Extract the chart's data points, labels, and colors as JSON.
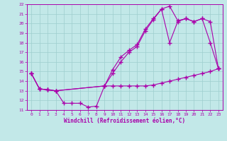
{
  "xlabel": "Windchill (Refroidissement éolien,°C)",
  "xlim": [
    -0.5,
    23.5
  ],
  "ylim": [
    11,
    22
  ],
  "xticks": [
    0,
    1,
    2,
    3,
    4,
    5,
    6,
    7,
    8,
    9,
    10,
    11,
    12,
    13,
    14,
    15,
    16,
    17,
    18,
    19,
    20,
    21,
    22,
    23
  ],
  "yticks": [
    11,
    12,
    13,
    14,
    15,
    16,
    17,
    18,
    19,
    20,
    21,
    22
  ],
  "bg_color": "#c2e8e8",
  "grid_color": "#9ecece",
  "line_color": "#aa00aa",
  "line1_x": [
    0,
    1,
    2,
    3,
    9,
    10,
    11,
    12,
    13,
    14,
    15,
    16,
    17,
    18,
    19,
    20,
    21,
    22,
    23
  ],
  "line1_y": [
    14.8,
    13.2,
    13.1,
    13.0,
    13.5,
    13.5,
    13.5,
    13.5,
    13.5,
    13.5,
    13.6,
    13.8,
    14.0,
    14.2,
    14.4,
    14.6,
    14.8,
    15.0,
    15.3
  ],
  "line2_x": [
    0,
    1,
    2,
    3,
    4,
    5,
    6,
    7,
    8,
    9,
    10,
    11,
    12,
    13,
    14,
    15,
    16,
    17,
    18,
    19,
    20,
    21,
    22,
    23
  ],
  "line2_y": [
    14.8,
    13.2,
    13.1,
    13.0,
    11.7,
    11.7,
    11.7,
    11.3,
    11.4,
    13.5,
    15.2,
    16.5,
    17.2,
    17.8,
    19.4,
    20.5,
    21.5,
    21.8,
    20.3,
    20.5,
    20.2,
    20.5,
    20.2,
    15.3
  ],
  "line3_x": [
    0,
    1,
    2,
    3,
    9,
    10,
    11,
    12,
    13,
    14,
    15,
    16,
    17,
    18,
    19,
    20,
    21,
    22,
    23
  ],
  "line3_y": [
    14.8,
    13.2,
    13.1,
    13.0,
    13.5,
    14.8,
    16.0,
    17.0,
    17.6,
    19.2,
    20.4,
    21.5,
    18.0,
    20.2,
    20.5,
    20.2,
    20.5,
    18.0,
    15.3
  ]
}
